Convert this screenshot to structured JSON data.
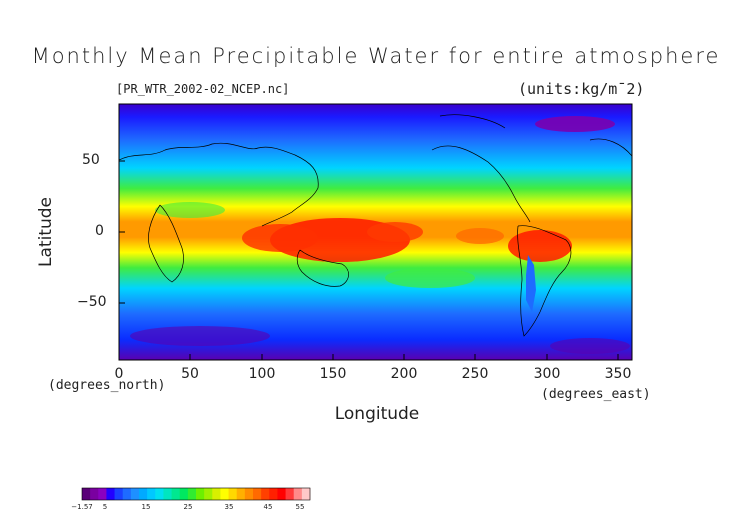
{
  "title": "Monthly Mean Precipitable Water for entire atmosphere",
  "file_label": "[PR_WTR_2002-02_NCEP.nc]",
  "units_label": "(units:kg/m¯2)",
  "axis": {
    "xlabel": "Longitude",
    "ylabel": "Latitude",
    "x_unit_note": "(degrees_east)",
    "y_unit_note": "(degrees_north)",
    "x_ticks": [
      "0",
      "50",
      "100",
      "150",
      "200",
      "250",
      "300",
      "350"
    ],
    "y_ticks": [
      "50",
      "0",
      "−50"
    ]
  },
  "colorbar": {
    "labels": [
      "−1.57",
      "5",
      "15",
      "25",
      "35",
      "45",
      "55"
    ],
    "colors": [
      "#5a0078",
      "#7a00a0",
      "#8a00c0",
      "#2200ff",
      "#1a40ff",
      "#1e6bff",
      "#1e90ff",
      "#00aaff",
      "#00c8ff",
      "#00e0f0",
      "#00e6c0",
      "#00e890",
      "#00e860",
      "#30ec30",
      "#6cf000",
      "#a0f000",
      "#d8f000",
      "#ffff00",
      "#ffd800",
      "#ffb000",
      "#ff8c00",
      "#ff6a00",
      "#ff4000",
      "#ff2000",
      "#ff0000",
      "#ff3a3a",
      "#ff8a8a",
      "#ffc8c8"
    ]
  },
  "colors": {
    "polar": "#3a00cc",
    "deep_blue": "#0a2cff",
    "blue": "#1e6bff",
    "cyan": "#00c8ff",
    "green": "#30ec30",
    "yellow": "#ffff00",
    "orange": "#ff9a00",
    "red": "#ff1a00"
  }
}
